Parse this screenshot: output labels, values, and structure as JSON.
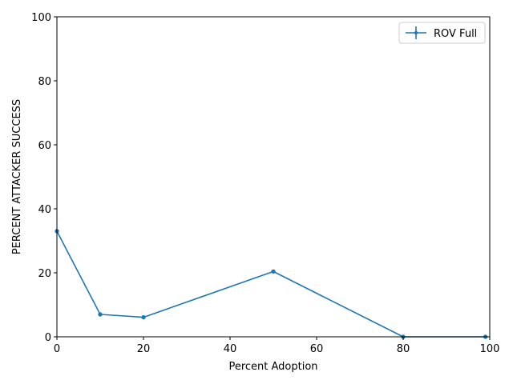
{
  "chart_data": {
    "type": "line",
    "title": "",
    "xlabel": "Percent Adoption",
    "ylabel": "PERCENT ATTACKER SUCCESS",
    "xlim": [
      0,
      100
    ],
    "ylim": [
      0,
      100
    ],
    "xticks": [
      0,
      20,
      40,
      60,
      80,
      100
    ],
    "yticks": [
      0,
      20,
      40,
      60,
      80,
      100
    ],
    "grid": false,
    "legend_position": "upper right",
    "series": [
      {
        "name": "ROV Full",
        "color": "#1f77b4",
        "marker": "point",
        "x": [
          0,
          10,
          20,
          50,
          80,
          99
        ],
        "y": [
          33.0,
          7.0,
          6.1,
          20.4,
          0.0,
          0.0
        ]
      }
    ]
  }
}
